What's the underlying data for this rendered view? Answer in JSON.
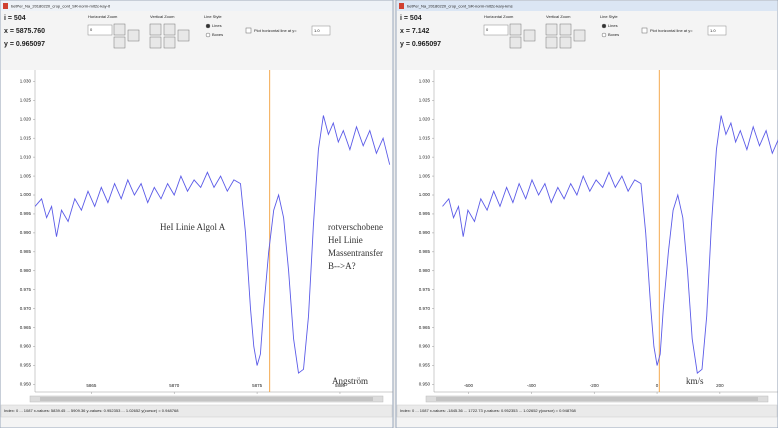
{
  "windows": [
    {
      "title": "betPer_Na_20180220_crop_cont_SR-norm-mit2c-kay-lt",
      "readout": [
        "i = 504",
        "x = 5875.760",
        "y = 0.965097"
      ],
      "controls": {
        "horizontal_zoom": "Horizontal Zoom",
        "zoom_value": "0",
        "vertical_zoom": "Vertical Zoom",
        "line_style": "Line Style",
        "lines": "Lines",
        "boxes": "Boxes",
        "plot_hline": "Plot horizontal line at y=",
        "hline_value": "1.0"
      },
      "status": "Index: 0 ... 1087   x-values: 5839.45 ... 5909.36   y-values: 0.952353 ... 1.02652   y(cursor) = 0.948768",
      "annotations": [
        "HeI Linie Algol A",
        "rotverschobene",
        "HeI Linie",
        "Massentransfer",
        "B-->A?",
        "Angström"
      ],
      "plot": {
        "type": "line",
        "color": "#5b5be8",
        "cursor_color": "#f2a03c",
        "cursor": 5875.76,
        "xlim": [
          5861.6,
          5883.2
        ],
        "ylim": [
          0.948,
          1.033
        ],
        "xticks": [
          5865,
          5870,
          5875,
          5880
        ],
        "yticks": [
          {
            "value": 1.03,
            "label": "1.030"
          },
          1.025,
          {
            "value": 1.02,
            "label": "1.020"
          },
          1.015,
          {
            "value": 1.01,
            "label": "1.010"
          },
          1.005,
          {
            "value": 1.0,
            "label": "1.000"
          },
          0.995,
          {
            "value": 0.99,
            "label": "0.990"
          },
          0.985,
          {
            "value": 0.98,
            "label": "0.980"
          },
          0.975,
          {
            "value": 0.97,
            "label": "0.970"
          },
          0.965,
          {
            "value": 0.96,
            "label": "0.960"
          },
          0.955,
          {
            "value": 0.95,
            "label": "0.950"
          }
        ],
        "x": [
          5861.6,
          5862.0,
          5862.3,
          5862.6,
          5862.9,
          5863.2,
          5863.6,
          5864.0,
          5864.4,
          5864.8,
          5865.2,
          5865.6,
          5866.0,
          5866.4,
          5866.8,
          5867.2,
          5867.6,
          5868.0,
          5868.4,
          5868.8,
          5869.2,
          5869.6,
          5870.0,
          5870.4,
          5870.8,
          5871.2,
          5871.6,
          5872.0,
          5872.4,
          5872.8,
          5873.2,
          5873.6,
          5874.0,
          5874.3,
          5874.6,
          5874.8,
          5875.0,
          5875.2,
          5875.4,
          5875.7,
          5876.0,
          5876.3,
          5876.6,
          5876.9,
          5877.2,
          5877.5,
          5877.8,
          5878.1,
          5878.4,
          5878.7,
          5879.0,
          5879.3,
          5879.6,
          5879.9,
          5880.2,
          5880.6,
          5881.0,
          5881.4,
          5881.8,
          5882.2,
          5882.6,
          5883.0
        ],
        "values": [
          0.997,
          0.999,
          0.994,
          0.997,
          0.989,
          0.996,
          0.993,
          0.999,
          0.996,
          1.001,
          0.997,
          1.002,
          0.998,
          1.003,
          0.999,
          1.004,
          1.0,
          1.003,
          0.998,
          1.002,
          0.999,
          1.003,
          1.0,
          1.005,
          1.001,
          1.004,
          1.002,
          1.006,
          1.002,
          1.005,
          1.001,
          1.004,
          1.003,
          0.99,
          0.97,
          0.96,
          0.955,
          0.958,
          0.97,
          0.985,
          0.996,
          1.0,
          0.994,
          0.98,
          0.962,
          0.953,
          0.954,
          0.968,
          0.992,
          1.012,
          1.021,
          1.016,
          1.019,
          1.014,
          1.017,
          1.012,
          1.018,
          1.013,
          1.017,
          1.011,
          1.015,
          1.008
        ]
      }
    },
    {
      "title": "betPer_Na_20180220_crop_cont_SR-norm-mit2c-kary-kms",
      "readout": [
        "i = 504",
        "x = 7.142",
        "y = 0.965097"
      ],
      "controls": {
        "horizontal_zoom": "Horizontal Zoom",
        "zoom_value": "0",
        "vertical_zoom": "Vertical Zoom",
        "line_style": "Line Style",
        "lines": "Lines",
        "boxes": "Boxes",
        "plot_hline": "Plot horizontal line at y=",
        "hline_value": "1.0"
      },
      "status": "Index: 0 ... 1087   x-values: -1845.36 ... 1722.73   y-values: 0.952353 ... 1.02652   y(cursor) = 0.948768",
      "annotations": [
        "km/s"
      ],
      "plot": {
        "type": "line",
        "color": "#5b5be8",
        "cursor_color": "#f2a03c",
        "cursor": 7.142,
        "xlim": [
          -710,
          385
        ],
        "ylim": [
          0.948,
          1.033
        ],
        "xticks": [
          -600,
          -400,
          -200,
          0,
          200
        ],
        "yticks": [
          {
            "value": 1.03,
            "label": "1.030"
          },
          1.025,
          {
            "value": 1.02,
            "label": "1.020"
          },
          1.015,
          {
            "value": 1.01,
            "label": "1.010"
          },
          1.005,
          {
            "value": 1.0,
            "label": "1.000"
          },
          0.995,
          {
            "value": 0.99,
            "label": "0.990"
          },
          0.985,
          {
            "value": 0.98,
            "label": "0.980"
          },
          0.975,
          {
            "value": 0.97,
            "label": "0.970"
          },
          0.965,
          {
            "value": 0.96,
            "label": "0.960"
          },
          0.955,
          {
            "value": 0.95,
            "label": "0.950"
          }
        ],
        "x": [
          -683,
          -663,
          -648,
          -632,
          -617,
          -602,
          -581,
          -561,
          -541,
          -520,
          -500,
          -479,
          -459,
          -439,
          -418,
          -398,
          -377,
          -357,
          -337,
          -316,
          -296,
          -275,
          -255,
          -235,
          -214,
          -194,
          -173,
          -153,
          -133,
          -112,
          -92,
          -71,
          -51,
          -36,
          -20,
          -10,
          0,
          10,
          20,
          36,
          51,
          66,
          82,
          97,
          112,
          128,
          143,
          158,
          173,
          189,
          204,
          219,
          235,
          250,
          265,
          286,
          306,
          326,
          347,
          367,
          388,
          408
        ],
        "values": [
          0.997,
          0.999,
          0.994,
          0.997,
          0.989,
          0.996,
          0.993,
          0.999,
          0.996,
          1.001,
          0.997,
          1.002,
          0.998,
          1.003,
          0.999,
          1.004,
          1.0,
          1.003,
          0.998,
          1.002,
          0.999,
          1.003,
          1.0,
          1.005,
          1.001,
          1.004,
          1.002,
          1.006,
          1.002,
          1.005,
          1.001,
          1.004,
          1.003,
          0.99,
          0.97,
          0.96,
          0.955,
          0.958,
          0.97,
          0.985,
          0.996,
          1.0,
          0.994,
          0.98,
          0.962,
          0.953,
          0.954,
          0.968,
          0.992,
          1.012,
          1.021,
          1.016,
          1.019,
          1.014,
          1.017,
          1.012,
          1.018,
          1.013,
          1.017,
          1.011,
          1.015,
          1.008
        ]
      }
    }
  ]
}
